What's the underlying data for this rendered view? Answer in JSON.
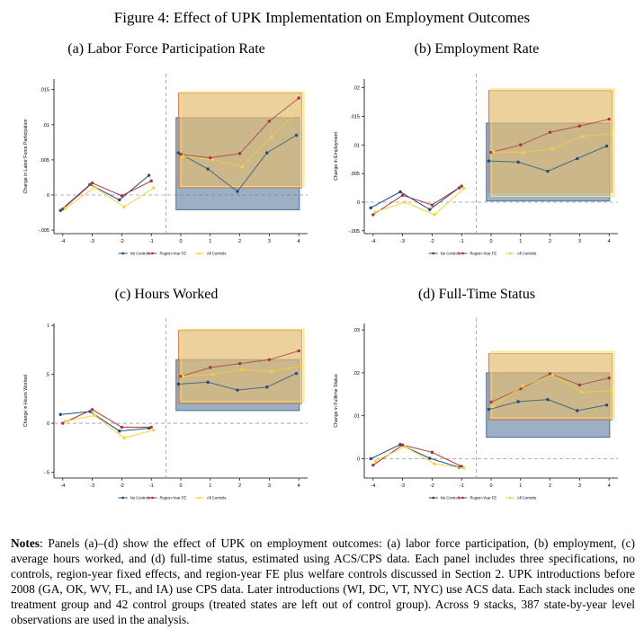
{
  "figure_title": "Figure 4: Effect of UPK Implementation on Employment Outcomes",
  "notes": {
    "label": "Notes",
    "text": ": Panels (a)–(d) show the effect of UPK on employment outcomes: (a) labor force participation, (b) employment, (c) average hours worked, and (d) full-time status, estimated using ACS/CPS data. Each panel includes three specifications, no controls, region-year fixed effects, and region-year FE plus welfare controls discussed in Section 2. UPK introductions before 2008 (GA, OK, WV, FL, and IA) use CPS data. Later introductions (WI, DC, VT, NYC) use ACS data. Each stack includes one treatment group and 42 control groups (treated states are left out of control group). Across 9 stacks, 387 state-by-year level observations are used in the analysis."
  },
  "colors": {
    "no_controls": "#1f4e79",
    "region_year_fe": "#a8323e",
    "all_controls": "#f5d33b",
    "box_no_controls": "#4a6f96",
    "box_region_fe": "#c9835a",
    "box_all": "#f7e27a"
  },
  "chart_data": [
    {
      "type": "line",
      "title": "(a) Labor Force Participation Rate",
      "ylabel": "Change in Labor Force Participation",
      "x": [
        -4,
        -3,
        -2,
        -1,
        0,
        1,
        2,
        3,
        4
      ],
      "ylim": [
        -0.0055,
        0.0165
      ],
      "yticks": [
        -0.005,
        0,
        0.005,
        0.01,
        0.015
      ],
      "ytick_labels": [
        "-.005",
        "0",
        ".005",
        ".01",
        ".015"
      ],
      "legend": [
        "No Controls",
        "Region-Year FE",
        "All Controls"
      ],
      "series": [
        {
          "name": "No Controls",
          "values": [
            -0.0022,
            0.0015,
            -0.0007,
            0.0028,
            0.006,
            0.0037,
            0.0005,
            0.006,
            0.0085
          ]
        },
        {
          "name": "Region-Year FE",
          "values": [
            -0.002,
            0.0017,
            -0.0001,
            0.002,
            0.0058,
            0.0053,
            0.0059,
            0.0105,
            0.0138
          ]
        },
        {
          "name": "All Controls",
          "values": [
            -0.0019,
            0.0011,
            -0.0017,
            0.001,
            0.0055,
            0.005,
            0.004,
            0.0083,
            0.0123
          ]
        }
      ],
      "boxes": [
        {
          "series": "No Controls",
          "y": [
            -0.0021,
            0.011
          ]
        },
        {
          "series": "Region-Year FE",
          "y": [
            0.001,
            0.0145
          ]
        },
        {
          "series": "All Controls",
          "y": [
            0.0012,
            0.0147
          ]
        }
      ]
    },
    {
      "type": "line",
      "title": "(b) Employment Rate",
      "ylabel": "Change in Employment",
      "x": [
        -4,
        -3,
        -2,
        -1,
        0,
        1,
        2,
        3,
        4
      ],
      "ylim": [
        -0.0055,
        0.0215
      ],
      "yticks": [
        -0.005,
        0,
        0.005,
        0.01,
        0.015,
        0.02
      ],
      "ytick_labels": [
        "-.005",
        "0",
        ".005",
        ".01",
        ".015",
        ".02"
      ],
      "legend": [
        "No Controls",
        "Region-Year FE",
        "All Controls"
      ],
      "series": [
        {
          "name": "No Controls",
          "values": [
            -0.001,
            0.0018,
            -0.0013,
            0.0025,
            0.0072,
            0.007,
            0.0054,
            0.0076,
            0.0098
          ]
        },
        {
          "name": "Region-Year FE",
          "values": [
            -0.0022,
            0.0012,
            -0.0005,
            0.0028,
            0.0087,
            0.01,
            0.0122,
            0.0133,
            0.0145
          ]
        },
        {
          "name": "All Controls",
          "values": [
            -0.0017,
            0,
            -0.0022,
            0.0024,
            0.0088,
            0.0087,
            0.0093,
            0.0115,
            0.012
          ]
        }
      ],
      "boxes": [
        {
          "series": "No Controls",
          "y": [
            0.0002,
            0.0138
          ]
        },
        {
          "series": "Region-Year FE",
          "y": [
            0.0017,
            0.0195
          ]
        },
        {
          "series": "All Controls",
          "y": [
            0.001,
            0.0198
          ]
        }
      ]
    },
    {
      "type": "line",
      "title": "(c) Hours Worked",
      "ylabel": "Change in Hours Worked",
      "x": [
        -4,
        -3,
        -2,
        -1,
        0,
        1,
        2,
        3,
        4
      ],
      "ylim": [
        -0.56,
        1.02
      ],
      "yticks": [
        -0.5,
        0,
        0.5,
        1
      ],
      "ytick_labels": [
        "-.5",
        "0",
        ".5",
        "1"
      ],
      "legend": [
        "No Controls",
        "Region-Year FE",
        "All Controls"
      ],
      "series": [
        {
          "name": "No Controls",
          "values": [
            0.09,
            0.12,
            -0.08,
            -0.05,
            0.4,
            0.42,
            0.34,
            0.37,
            0.51
          ]
        },
        {
          "name": "Region-Year FE",
          "values": [
            0,
            0.14,
            -0.04,
            -0.04,
            0.48,
            0.57,
            0.61,
            0.65,
            0.74
          ]
        },
        {
          "name": "All Controls",
          "values": [
            0.02,
            0.08,
            -0.15,
            -0.07,
            0.48,
            0.5,
            0.55,
            0.53,
            0.58
          ]
        }
      ],
      "boxes": [
        {
          "series": "No Controls",
          "y": [
            0.13,
            0.65
          ]
        },
        {
          "series": "Region-Year FE",
          "y": [
            0.2,
            0.95
          ]
        },
        {
          "series": "All Controls",
          "y": [
            0.22,
            0.96
          ]
        }
      ]
    },
    {
      "type": "line",
      "title": "(d) Full-Time Status",
      "ylabel": "Change in Fulltime Status",
      "x": [
        -4,
        -3,
        -2,
        -1,
        0,
        1,
        2,
        3,
        4
      ],
      "ylim": [
        -0.0045,
        0.0315
      ],
      "yticks": [
        0,
        0.01,
        0.02,
        0.03
      ],
      "ytick_labels": [
        "0",
        ".01",
        ".02",
        ".03"
      ],
      "legend": [
        "No Controls",
        "Region-Year FE",
        "All Controls"
      ],
      "series": [
        {
          "name": "No Controls",
          "values": [
            0,
            0.0033,
            0.0001,
            -0.002,
            0.0115,
            0.0133,
            0.0138,
            0.0112,
            0.0125
          ]
        },
        {
          "name": "Region-Year FE",
          "values": [
            -0.0015,
            0.0032,
            0.0015,
            -0.0018,
            0.0132,
            0.0163,
            0.0198,
            0.0172,
            0.0188
          ]
        },
        {
          "name": "All Controls",
          "values": [
            -0.0005,
            0.0028,
            -0.0012,
            -0.0022,
            0.0122,
            0.017,
            0.0195,
            0.0155,
            0.0158
          ]
        }
      ],
      "boxes": [
        {
          "series": "No Controls",
          "y": [
            0.005,
            0.02
          ]
        },
        {
          "series": "Region-Year FE",
          "y": [
            0.009,
            0.0245
          ]
        },
        {
          "series": "All Controls",
          "y": [
            0.0095,
            0.025
          ]
        }
      ]
    }
  ]
}
